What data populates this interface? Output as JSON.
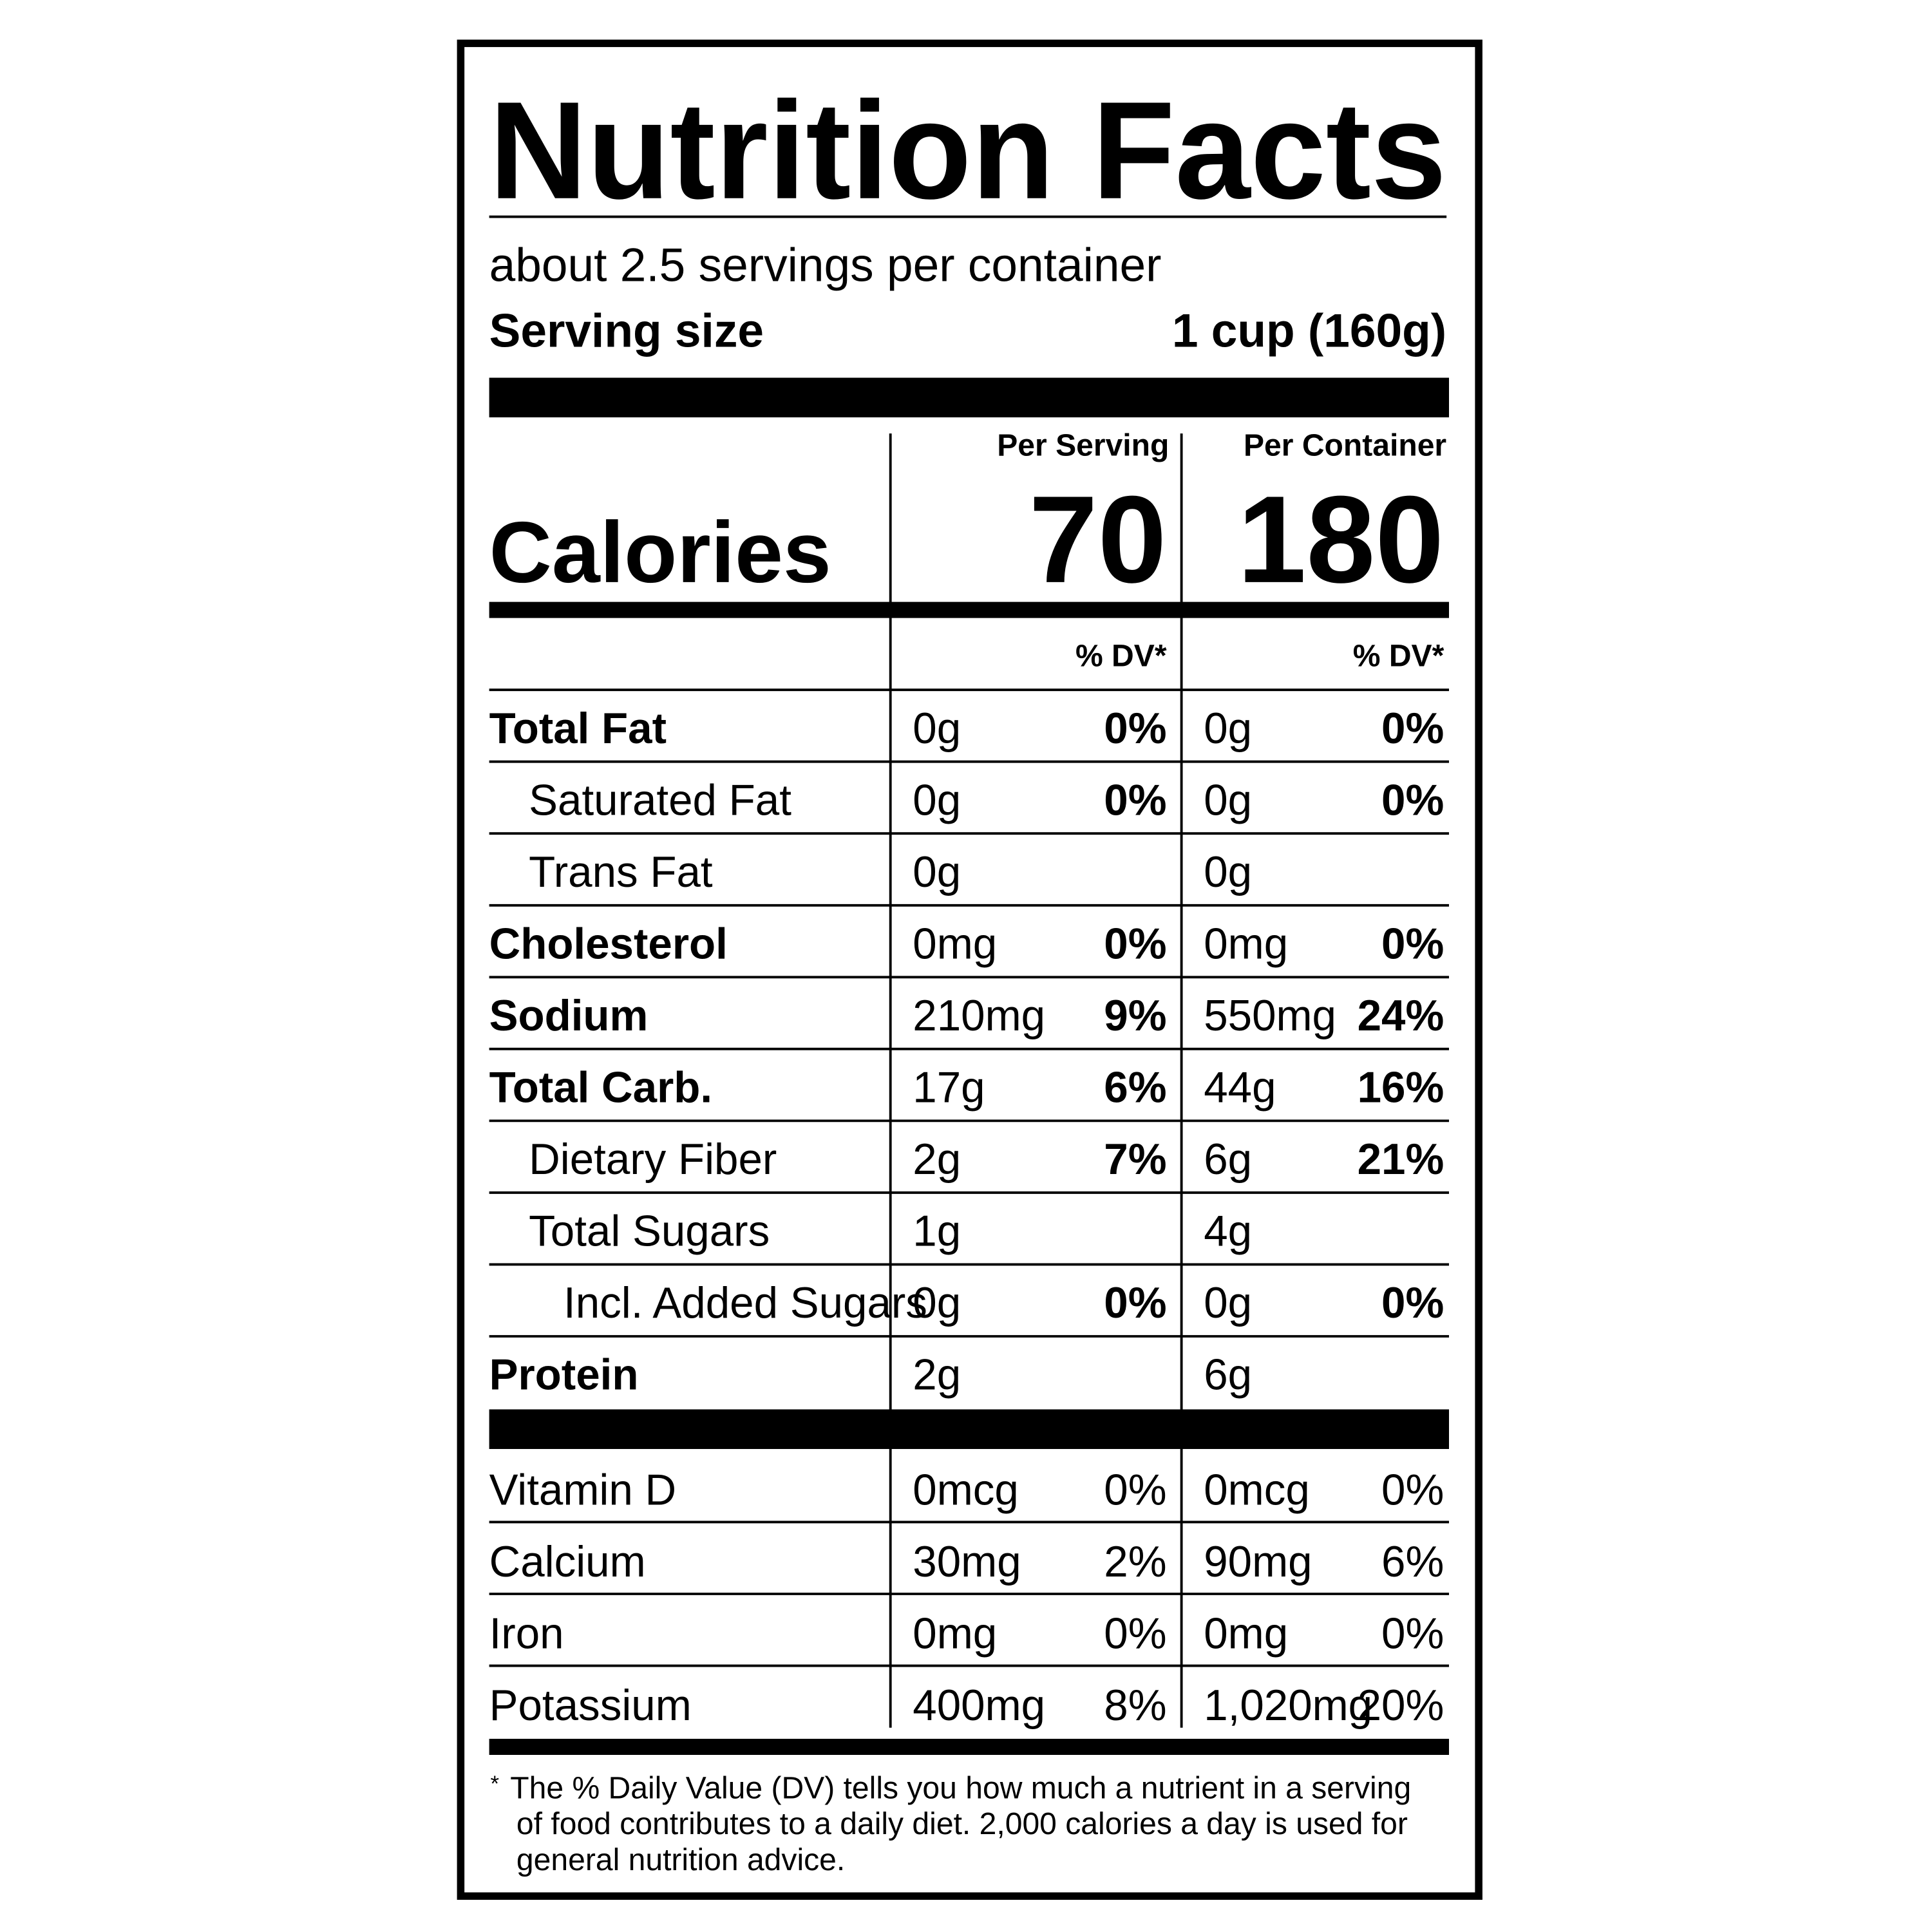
{
  "title": "Nutrition Facts",
  "servings": "about 2.5 servings per container",
  "serving_size": {
    "label": "Serving size",
    "value": "1 cup (160g)"
  },
  "columns": [
    "Per Serving",
    "Per Container"
  ],
  "calories": {
    "label": "Calories",
    "values": [
      "70",
      "180"
    ]
  },
  "dv_header": [
    "% DV*",
    "% DV*"
  ],
  "nutrients": [
    {
      "name": "Total Fat",
      "bold": true,
      "indent": 0,
      "serving": [
        "0g",
        "0%"
      ],
      "container": [
        "0g",
        "0%"
      ]
    },
    {
      "name": "Saturated Fat",
      "bold": false,
      "indent": 1,
      "serving": [
        "0g",
        "0%"
      ],
      "container": [
        "0g",
        "0%"
      ]
    },
    {
      "name": "Trans Fat",
      "bold": false,
      "indent": 1,
      "serving": [
        "0g",
        null
      ],
      "container": [
        "0g",
        null
      ]
    },
    {
      "name": "Cholesterol",
      "bold": true,
      "indent": 0,
      "serving": [
        "0mg",
        "0%"
      ],
      "container": [
        "0mg",
        "0%"
      ]
    },
    {
      "name": "Sodium",
      "bold": true,
      "indent": 0,
      "serving": [
        "210mg",
        "9%"
      ],
      "container": [
        "550mg",
        "24%"
      ]
    },
    {
      "name": "Total Carb.",
      "bold": true,
      "indent": 0,
      "serving": [
        "17g",
        "6%"
      ],
      "container": [
        "44g",
        "16%"
      ]
    },
    {
      "name": "Dietary Fiber",
      "bold": false,
      "indent": 1,
      "serving": [
        "2g",
        "7%"
      ],
      "container": [
        "6g",
        "21%"
      ]
    },
    {
      "name": "Total Sugars",
      "bold": false,
      "indent": 1,
      "serving": [
        "1g",
        null
      ],
      "container": [
        "4g",
        null
      ]
    },
    {
      "name": "Incl. Added Sugars",
      "bold": false,
      "indent": 2,
      "serving": [
        "0g",
        "0%"
      ],
      "container": [
        "0g",
        "0%"
      ]
    },
    {
      "name": "Protein",
      "bold": true,
      "indent": 0,
      "serving": [
        "2g",
        null
      ],
      "container": [
        "6g",
        null
      ]
    }
  ],
  "vitamins": [
    {
      "name": "Vitamin D",
      "serving": [
        "0mcg",
        "0%"
      ],
      "container": [
        "0mcg",
        "0%"
      ]
    },
    {
      "name": "Calcium",
      "serving": [
        "30mg",
        "2%"
      ],
      "container": [
        "90mg",
        "6%"
      ]
    },
    {
      "name": "Iron",
      "serving": [
        "0mg",
        "0%"
      ],
      "container": [
        "0mg",
        "0%"
      ]
    },
    {
      "name": "Potassium",
      "serving": [
        "400mg",
        "8%"
      ],
      "container": [
        "1,020mg",
        "20%"
      ]
    }
  ],
  "footnote": {
    "mark": "*",
    "lines": [
      "The % Daily Value (DV) tells you how much a nutrient in a serving",
      "of food contributes to a daily diet. 2,000 calories a day is used for",
      "general nutrition advice."
    ]
  }
}
